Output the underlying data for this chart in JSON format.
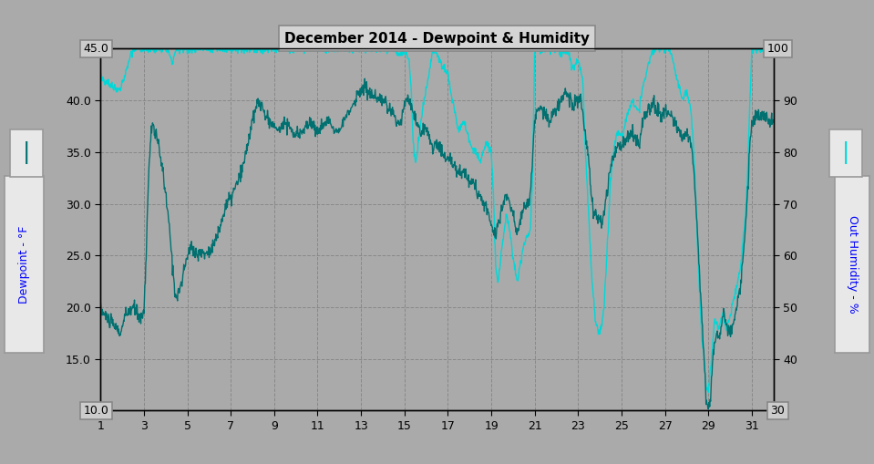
{
  "title": "December 2014 - Dewpoint & Humidity",
  "xlim": [
    1,
    32
  ],
  "xticks": [
    1,
    3,
    5,
    7,
    9,
    11,
    13,
    15,
    17,
    19,
    21,
    23,
    25,
    27,
    29,
    31
  ],
  "ylim_left": [
    10.0,
    45.0
  ],
  "ylim_right": [
    30,
    100
  ],
  "yticks_left": [
    10.0,
    15.0,
    20.0,
    25.0,
    30.0,
    35.0,
    40.0,
    45.0
  ],
  "yticks_right": [
    30,
    40,
    50,
    60,
    70,
    80,
    90,
    100
  ],
  "ylabel_left": "Dewpoint - °F",
  "ylabel_right": "Out Humidity - %",
  "bg_color": "#aaaaaa",
  "plot_bg_color": "#aaaaaa",
  "dewpoint_color": "#007070",
  "humidity_color": "#00d8d8",
  "grid_color": "#888888",
  "label_box_facecolor": "#e8e8e8",
  "label_box_edgecolor": "#999999",
  "corner_box_facecolor": "#cccccc",
  "corner_box_edgecolor": "#888888"
}
